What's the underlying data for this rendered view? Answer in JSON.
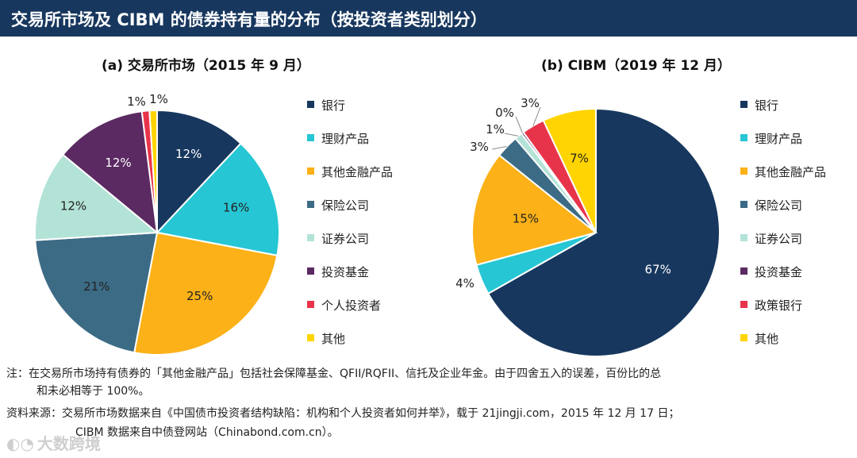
{
  "header": {
    "title": "交易所市场及 CIBM 的债券持有量的分布（按投资者类别划分）"
  },
  "chart_data": [
    {
      "type": "pie",
      "title": "(a)  交易所市场（2015 年 9 月）",
      "categories": [
        "银行",
        "理财产品",
        "其他金融产品",
        "保险公司",
        "证券公司",
        "投资基金",
        "个人投资者",
        "其他"
      ],
      "values": [
        12,
        16,
        25,
        21,
        12,
        12,
        1,
        1
      ],
      "value_labels": [
        "12%",
        "16%",
        "25%",
        "21%",
        "12%",
        "12%",
        "1%",
        "1%"
      ],
      "colors": [
        "#17375e",
        "#26c6d4",
        "#fbb117",
        "#3c6b85",
        "#b3e3d7",
        "#5b2a62",
        "#e8344a",
        "#ffd400"
      ],
      "label_colors": [
        "#ffffff",
        "#222222",
        "#222222",
        "#222222",
        "#222222",
        "#ffffff",
        "#222222",
        "#222222"
      ]
    },
    {
      "type": "pie",
      "title": "(b)  CIBM（2019 年 12 月）",
      "categories": [
        "银行",
        "理财产品",
        "其他金融产品",
        "保险公司",
        "证券公司",
        "投资基金",
        "政策银行",
        "其他"
      ],
      "values": [
        67,
        4,
        15,
        3,
        1,
        0.3,
        3,
        7
      ],
      "value_labels": [
        "67%",
        "4%",
        "15%",
        "3%",
        "1%",
        "0%",
        "3%",
        "7%"
      ],
      "colors": [
        "#17375e",
        "#26c6d4",
        "#fbb117",
        "#3c6b85",
        "#b3e3d7",
        "#5b2a62",
        "#e8344a",
        "#ffd400"
      ],
      "label_colors": [
        "#ffffff",
        "#222222",
        "#222222",
        "#222222",
        "#222222",
        "#222222",
        "#222222",
        "#222222"
      ]
    }
  ],
  "notes": {
    "note_line1": "注：在交易所市场持有债券的「其他金融产品」包括社会保障基金、QFII/RQFII、信托及企业年金。由于四舍五入的误差，百份比的总",
    "note_line2": "和未必相等于 100%。",
    "source_line1": "资料来源：交易所市场数据来自《中国债市投资者结构缺陷：机构和个人投资者如何并举》，载于 21jingji.com，2015 年 12 月 17 日；",
    "source_line2": "CIBM 数据来自中债登网站（Chinabond.com.cn）。"
  },
  "watermark": {
    "icon": "weibo-icon",
    "text": "大数跨境"
  }
}
